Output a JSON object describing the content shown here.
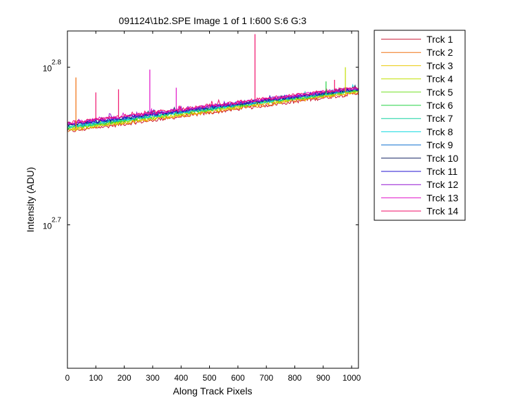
{
  "chart_data": {
    "type": "line",
    "title": "091124\\1b2.SPE  Image 1 of 1  I:600  S:6  G:3",
    "xlabel": "Along Track Pixels",
    "ylabel": "Intensity (ADU)",
    "xlim": [
      0,
      1024
    ],
    "ylim_log10": [
      2.609,
      2.823
    ],
    "yscale": "log",
    "x_ticks": [
      0,
      100,
      200,
      300,
      400,
      500,
      600,
      700,
      800,
      900,
      1000
    ],
    "x_tick_labels": [
      "0",
      "100",
      "200",
      "300",
      "400",
      "500",
      "600",
      "700",
      "800",
      "900",
      "1000"
    ],
    "y_ticks_log10": [
      2.7,
      2.8
    ],
    "y_tick_labels": [
      {
        "base": "10",
        "exp": "2.7"
      },
      {
        "base": "10",
        "exp": "2.8"
      }
    ],
    "legend_position": "outside-right",
    "grid": false,
    "series": [
      {
        "name": "Trck 1",
        "color": "#c8102e",
        "log10_start": 2.7592,
        "log10_end": 2.7835
      },
      {
        "name": "Trck 2",
        "color": "#f07010",
        "log10_start": 2.7597,
        "log10_end": 2.784
      },
      {
        "name": "Trck 3",
        "color": "#e8c800",
        "log10_start": 2.7602,
        "log10_end": 2.7845
      },
      {
        "name": "Trck 4",
        "color": "#c0e000",
        "log10_start": 2.7607,
        "log10_end": 2.785
      },
      {
        "name": "Trck 5",
        "color": "#70e020",
        "log10_start": 2.7612,
        "log10_end": 2.7853
      },
      {
        "name": "Trck 6",
        "color": "#20d040",
        "log10_start": 2.7616,
        "log10_end": 2.7856
      },
      {
        "name": "Trck 7",
        "color": "#10d0a0",
        "log10_start": 2.762,
        "log10_end": 2.7858
      },
      {
        "name": "Trck 8",
        "color": "#10d8e0",
        "log10_start": 2.7624,
        "log10_end": 2.786
      },
      {
        "name": "Trck 9",
        "color": "#1070d0",
        "log10_start": 2.7628,
        "log10_end": 2.7862
      },
      {
        "name": "Trck 10",
        "color": "#102060",
        "log10_start": 2.7632,
        "log10_end": 2.7864
      },
      {
        "name": "Trck 11",
        "color": "#2010d0",
        "log10_start": 2.7636,
        "log10_end": 2.7866
      },
      {
        "name": "Trck 12",
        "color": "#9010d0",
        "log10_start": 2.764,
        "log10_end": 2.7868
      },
      {
        "name": "Trck 13",
        "color": "#e010c8",
        "log10_start": 2.7644,
        "log10_end": 2.787
      },
      {
        "name": "Trck 14",
        "color": "#f0106a",
        "log10_start": 2.7648,
        "log10_end": 2.7872
      }
    ],
    "spikes": [
      {
        "series": "Trck 2",
        "x": 30,
        "log10": 2.7935
      },
      {
        "series": "Trck 13",
        "x": 290,
        "log10": 2.7985
      },
      {
        "series": "Trck 13",
        "x": 383,
        "log10": 2.787
      },
      {
        "series": "Trck 14",
        "x": 660,
        "log10": 2.821
      },
      {
        "series": "Trck 4",
        "x": 978,
        "log10": 2.8
      },
      {
        "series": "Trck 6",
        "x": 910,
        "log10": 2.791
      },
      {
        "series": "Trck 14",
        "x": 100,
        "log10": 2.784
      },
      {
        "series": "Trck 14",
        "x": 180,
        "log10": 2.786
      },
      {
        "series": "Trck 14",
        "x": 940,
        "log10": 2.792
      }
    ]
  }
}
